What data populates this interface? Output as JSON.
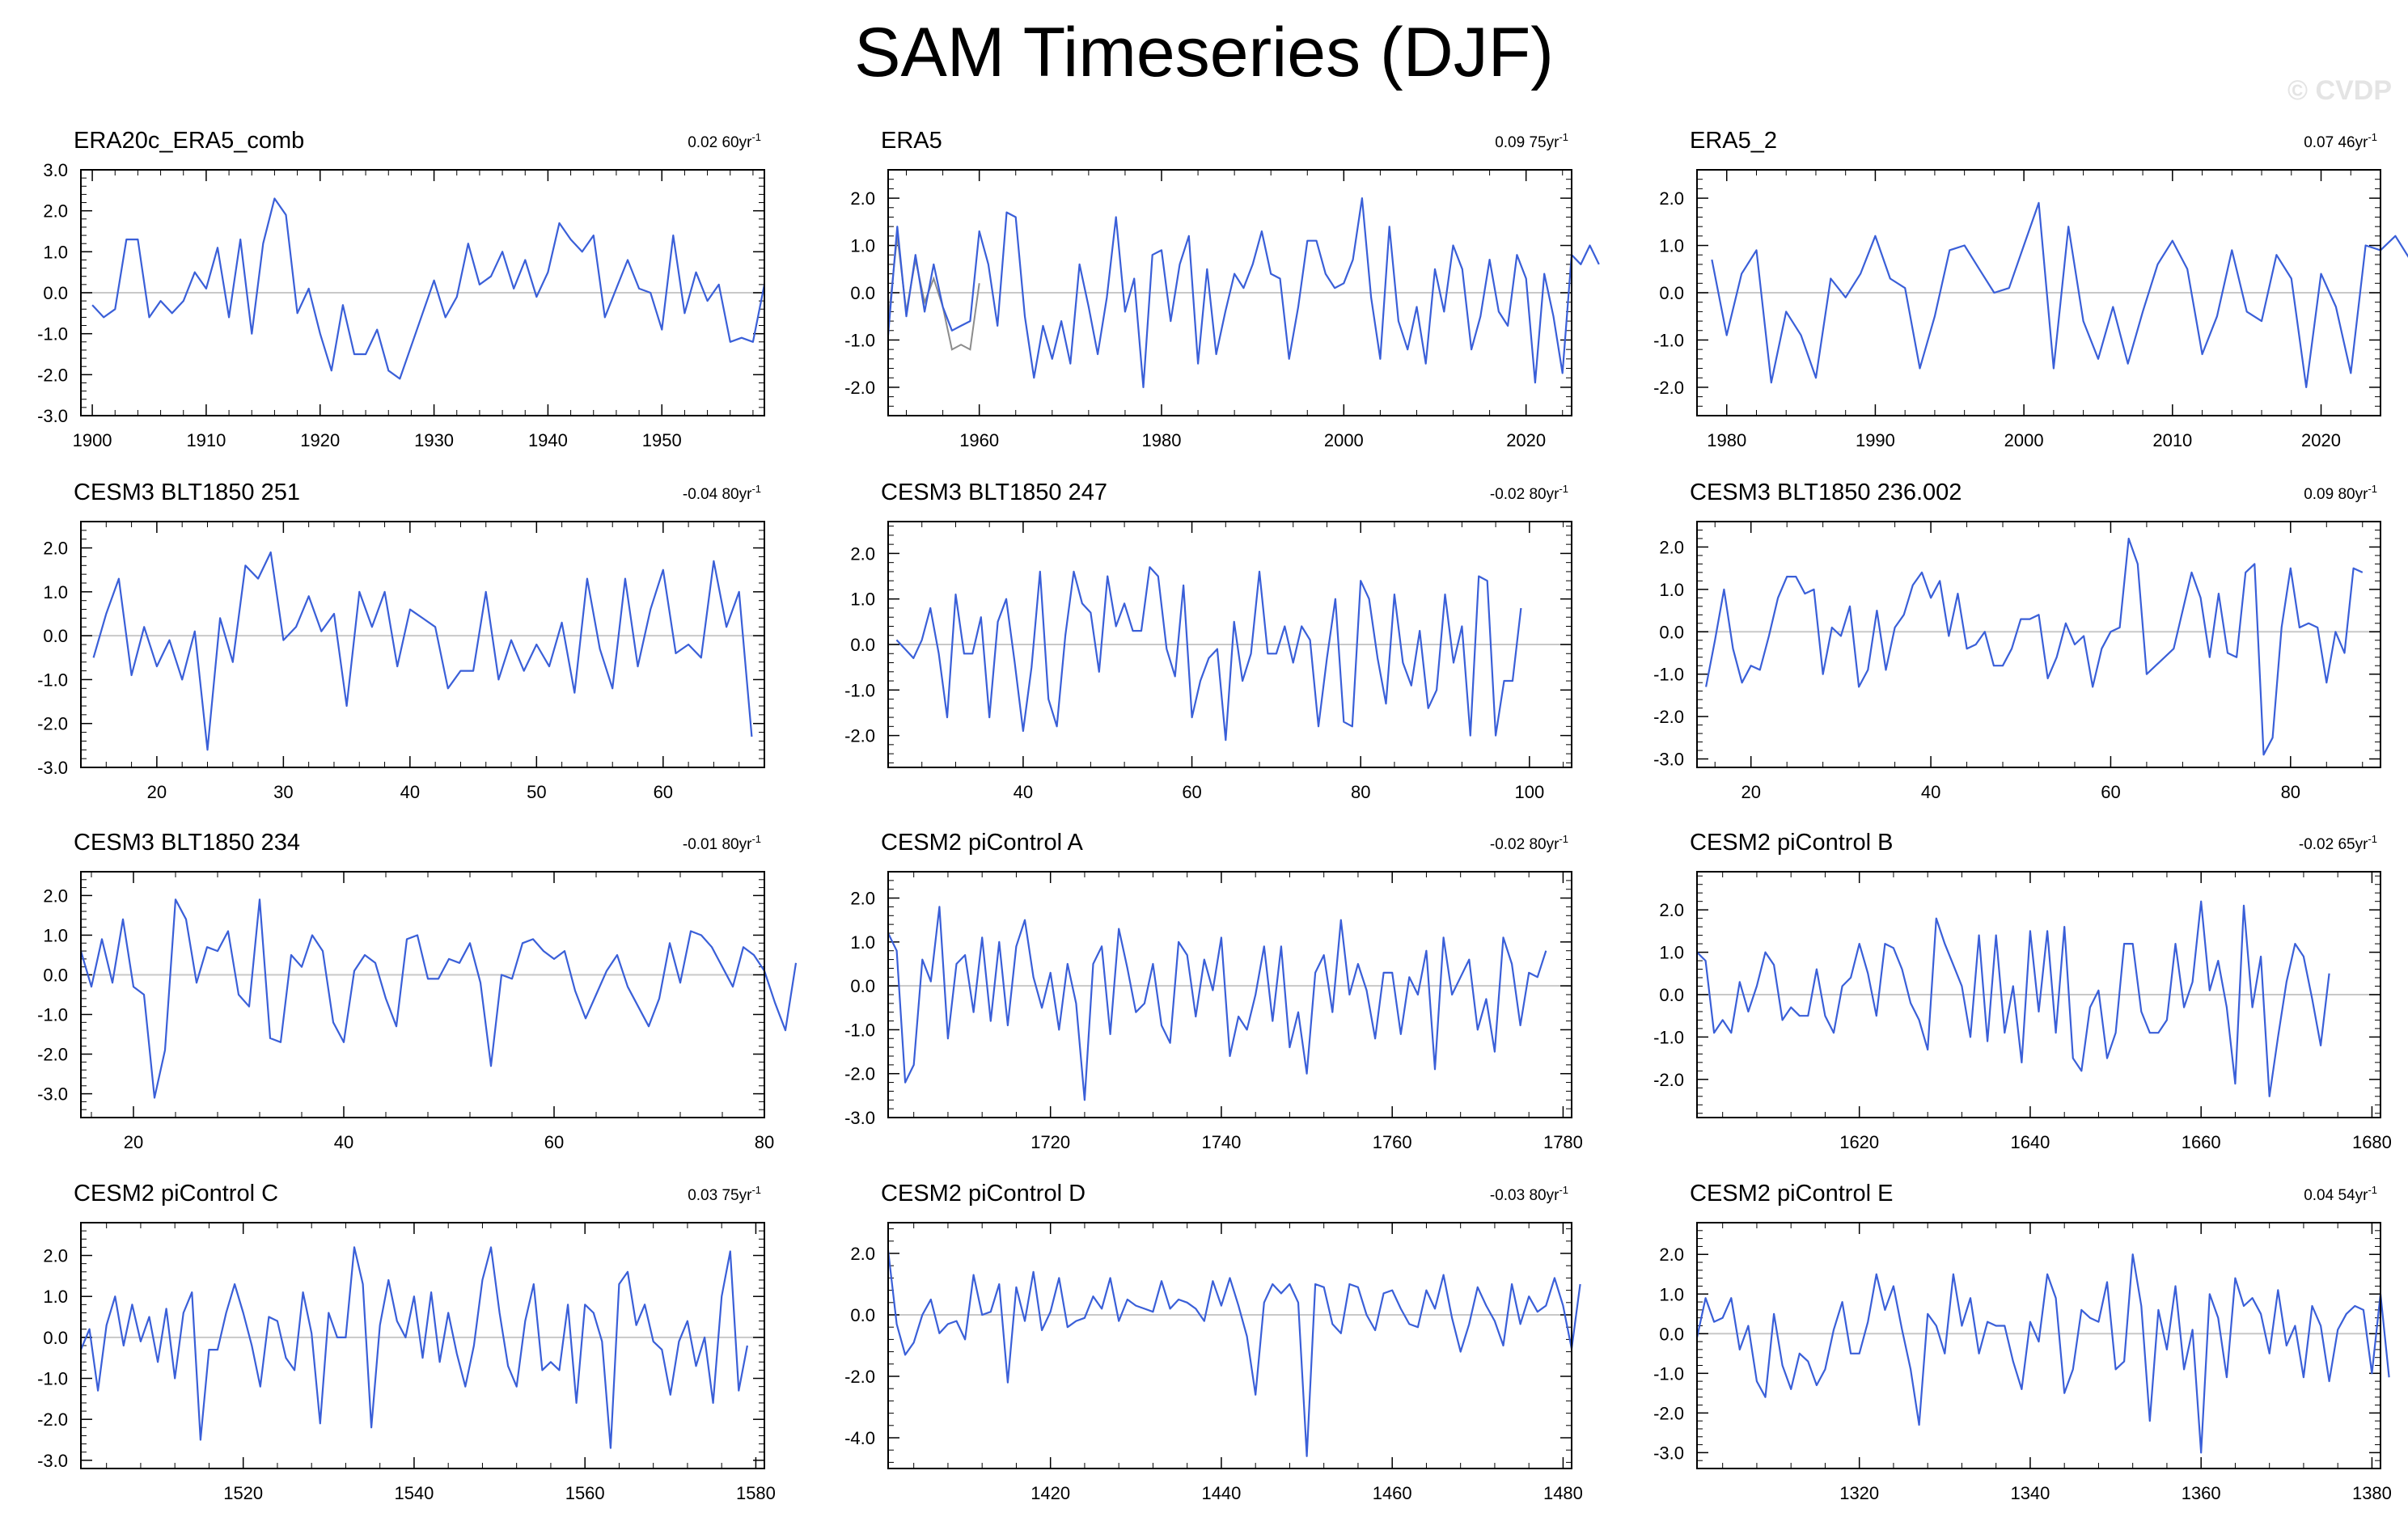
{
  "title": "SAM Timeseries (DJF)",
  "watermark": "© CVDP",
  "colors": {
    "series": "#3a5fd8",
    "overlay": "#8c8c8c",
    "zero_line": "#c8c8c8",
    "frame": "#000000"
  },
  "chart_data": [
    {
      "type": "line",
      "title": "ERA20c_ERA5_comb",
      "trend": "0.02",
      "trend_per": "60yr",
      "trend_unit": "-1",
      "x_start": 1900,
      "xlim": [
        1899,
        1959
      ],
      "ylim": [
        -3.0,
        3.0
      ],
      "yticks": [
        -3.0,
        -2.0,
        -1.0,
        0.0,
        1.0,
        2.0,
        3.0
      ],
      "xticks": [
        1900,
        1910,
        1920,
        1930,
        1940,
        1950
      ],
      "values": [
        -0.3,
        -0.6,
        -0.4,
        1.3,
        1.3,
        -0.6,
        -0.2,
        -0.5,
        -0.2,
        0.5,
        0.1,
        1.1,
        -0.6,
        1.3,
        -1.0,
        1.2,
        2.3,
        1.9,
        -0.5,
        0.1,
        -1.0,
        -1.9,
        -0.3,
        -1.5,
        -1.5,
        -0.9,
        -1.9,
        -2.1,
        -1.3,
        -0.5,
        0.3,
        -0.6,
        -0.1,
        1.2,
        0.2,
        0.4,
        1.0,
        0.1,
        0.8,
        -0.1,
        0.5,
        1.7,
        1.3,
        1.0,
        1.4,
        -0.6,
        0.1,
        0.8,
        0.1,
        0.0,
        -0.9,
        1.4,
        -0.5,
        0.5,
        -0.2,
        0.2,
        -1.2,
        -1.1,
        -1.2,
        0.2
      ],
      "overlay_values": []
    },
    {
      "type": "line",
      "title": "ERA5",
      "trend": "0.09",
      "trend_per": "75yr",
      "trend_unit": "-1",
      "x_start": 1950,
      "xlim": [
        1950,
        2025
      ],
      "ylim": [
        -2.6,
        2.6
      ],
      "yticks": [
        -2.0,
        -1.0,
        0.0,
        1.0,
        2.0
      ],
      "xticks": [
        1960,
        1980,
        2000,
        2020
      ],
      "values": [
        -0.9,
        1.4,
        -0.5,
        0.8,
        -0.4,
        0.6,
        -0.3,
        -0.8,
        -0.7,
        -0.6,
        1.3,
        0.6,
        -0.7,
        1.7,
        1.6,
        -0.5,
        -1.8,
        -0.7,
        -1.4,
        -0.6,
        -1.5,
        0.6,
        -0.3,
        -1.3,
        -0.1,
        1.6,
        -0.4,
        0.3,
        -2.0,
        0.8,
        0.9,
        -0.6,
        0.6,
        1.2,
        -1.5,
        0.5,
        -1.3,
        -0.4,
        0.4,
        0.1,
        0.6,
        1.3,
        0.4,
        0.3,
        -1.4,
        -0.3,
        1.1,
        1.1,
        0.4,
        0.1,
        0.2,
        0.7,
        2.0,
        -0.1,
        -1.4,
        1.4,
        -0.6,
        -1.2,
        -0.3,
        -1.5,
        0.5,
        -0.4,
        1.0,
        0.5,
        -1.2,
        -0.5,
        0.7,
        -0.4,
        -0.7,
        0.8,
        0.3,
        -1.9,
        0.4,
        -0.5,
        -1.7,
        0.8,
        0.6,
        1.0,
        0.6
      ],
      "overlay_values": [
        -0.6,
        1.2,
        -0.4,
        0.7,
        -0.2,
        0.3,
        -0.3,
        -1.2,
        -1.1,
        -1.2,
        0.2
      ]
    },
    {
      "type": "line",
      "title": "ERA5_2",
      "trend": "0.07",
      "trend_per": "46yr",
      "trend_unit": "-1",
      "x_start": 1979,
      "xlim": [
        1978,
        2024
      ],
      "ylim": [
        -2.6,
        2.6
      ],
      "yticks": [
        -2.0,
        -1.0,
        0.0,
        1.0,
        2.0
      ],
      "xticks": [
        1980,
        1990,
        2000,
        2010,
        2020
      ],
      "values": [
        0.7,
        -0.9,
        0.4,
        0.9,
        -1.9,
        -0.4,
        -0.9,
        -1.8,
        0.3,
        -0.1,
        0.4,
        1.2,
        0.3,
        0.1,
        -1.6,
        -0.5,
        0.9,
        1.0,
        0.5,
        0.0,
        0.1,
        1.0,
        1.9,
        -1.6,
        1.4,
        -0.6,
        -1.4,
        -0.3,
        -1.5,
        -0.4,
        0.6,
        1.1,
        0.5,
        -1.3,
        -0.5,
        0.9,
        -0.4,
        -0.6,
        0.8,
        0.3,
        -2.0,
        0.4,
        -0.3,
        -1.7,
        1.0,
        0.9,
        1.2,
        0.7
      ],
      "overlay_values": []
    },
    {
      "type": "line",
      "title": "CESM3 BLT1850 251",
      "trend": "-0.04",
      "trend_per": "80yr",
      "trend_unit": "-1",
      "x_start": 15,
      "xlim": [
        14,
        68
      ],
      "ylim": [
        -3.0,
        2.6
      ],
      "yticks": [
        -3.0,
        -2.0,
        -1.0,
        0.0,
        1.0,
        2.0
      ],
      "xticks": [
        20,
        30,
        40,
        50,
        60
      ],
      "values": [
        -0.5,
        0.5,
        1.3,
        -0.9,
        0.2,
        -0.7,
        -0.1,
        -1.0,
        0.1,
        -2.6,
        0.4,
        -0.6,
        1.6,
        1.3,
        1.9,
        -0.1,
        0.2,
        0.9,
        0.1,
        0.5,
        -1.6,
        1.0,
        0.2,
        1.0,
        -0.7,
        0.6,
        0.4,
        0.2,
        -1.2,
        -0.8,
        -0.8,
        1.0,
        -1.0,
        -0.1,
        -0.8,
        -0.2,
        -0.7,
        0.3,
        -1.3,
        1.3,
        -0.3,
        -1.2,
        1.3,
        -0.7,
        0.6,
        1.5,
        -0.4,
        -0.2,
        -0.5,
        1.7,
        0.2,
        1.0,
        -2.3
      ],
      "overlay_values": []
    },
    {
      "type": "line",
      "title": "CESM3 BLT1850 247",
      "trend": "-0.02",
      "trend_per": "80yr",
      "trend_unit": "-1",
      "x_start": 25,
      "xlim": [
        24,
        105
      ],
      "ylim": [
        -2.7,
        2.7
      ],
      "yticks": [
        -2.0,
        -1.0,
        0.0,
        1.0,
        2.0
      ],
      "xticks": [
        40,
        60,
        80,
        100
      ],
      "values": [
        0.1,
        -0.1,
        -0.3,
        0.1,
        0.8,
        -0.2,
        -1.6,
        1.1,
        -0.2,
        -0.2,
        0.6,
        -1.6,
        0.5,
        1.0,
        -0.4,
        -1.9,
        -0.5,
        1.6,
        -1.2,
        -1.8,
        0.2,
        1.6,
        0.9,
        0.7,
        -0.6,
        1.5,
        0.4,
        0.9,
        0.3,
        0.3,
        1.7,
        1.5,
        -0.1,
        -0.7,
        1.3,
        -1.6,
        -0.8,
        -0.3,
        -0.1,
        -2.1,
        0.5,
        -0.8,
        -0.2,
        1.6,
        -0.2,
        -0.2,
        0.4,
        -0.4,
        0.4,
        0.1,
        -1.8,
        -0.3,
        1.0,
        -1.7,
        -1.8,
        1.4,
        1.0,
        -0.3,
        -1.3,
        1.1,
        -0.4,
        -0.9,
        0.3,
        -1.4,
        -1.0,
        1.1,
        -0.4,
        0.4,
        -2.0,
        1.5,
        1.4,
        -2.0,
        -0.8,
        -0.8,
        0.8
      ],
      "overlay_values": []
    },
    {
      "type": "line",
      "title": "CESM3 BLT1850 236.002",
      "trend": "0.09",
      "trend_per": "80yr",
      "trend_unit": "-1",
      "x_start": 15,
      "xlim": [
        14,
        90
      ],
      "ylim": [
        -3.2,
        2.6
      ],
      "yticks": [
        -3.0,
        -2.0,
        -1.0,
        0.0,
        1.0,
        2.0
      ],
      "xticks": [
        20,
        40,
        60,
        80
      ],
      "values": [
        -1.3,
        -0.2,
        1.0,
        -0.4,
        -1.2,
        -0.8,
        -0.9,
        -0.1,
        0.8,
        1.3,
        1.3,
        0.9,
        1.0,
        -1.0,
        0.1,
        -0.1,
        0.6,
        -1.3,
        -0.9,
        0.5,
        -0.9,
        0.1,
        0.4,
        1.1,
        1.4,
        0.8,
        1.2,
        -0.1,
        0.9,
        -0.4,
        -0.3,
        0.0,
        -0.8,
        -0.8,
        -0.4,
        0.3,
        0.3,
        0.4,
        -1.1,
        -0.6,
        0.2,
        -0.3,
        -0.1,
        -1.3,
        -0.4,
        0.0,
        0.1,
        2.2,
        1.6,
        -1.0,
        -0.8,
        -0.6,
        -0.4,
        0.5,
        1.4,
        0.8,
        -0.6,
        0.9,
        -0.5,
        -0.6,
        1.4,
        1.6,
        -2.9,
        -2.5,
        0.1,
        1.5,
        0.1,
        0.2,
        0.1,
        -1.2,
        0.0,
        -0.5,
        1.5,
        1.4
      ],
      "overlay_values": []
    },
    {
      "type": "line",
      "title": "CESM3 BLT1850 234",
      "trend": "-0.01",
      "trend_per": "80yr",
      "trend_unit": "-1",
      "x_start": 15,
      "xlim": [
        15,
        80
      ],
      "ylim": [
        -3.6,
        2.6
      ],
      "yticks": [
        -3.0,
        -2.0,
        -1.0,
        0.0,
        1.0,
        2.0
      ],
      "xticks": [
        20,
        40,
        60,
        80
      ],
      "values": [
        0.6,
        -0.3,
        0.9,
        -0.2,
        1.4,
        -0.3,
        -0.5,
        -3.1,
        -1.9,
        1.9,
        1.4,
        -0.2,
        0.7,
        0.6,
        1.1,
        -0.5,
        -0.8,
        1.9,
        -1.6,
        -1.7,
        0.5,
        0.2,
        1.0,
        0.6,
        -1.2,
        -1.7,
        0.1,
        0.5,
        0.3,
        -0.6,
        -1.3,
        0.9,
        1.0,
        -0.1,
        -0.1,
        0.4,
        0.3,
        0.8,
        -0.2,
        -2.3,
        0.0,
        -0.1,
        0.8,
        0.9,
        0.6,
        0.4,
        0.6,
        -0.4,
        -1.1,
        -0.5,
        0.1,
        0.5,
        -0.3,
        -0.8,
        -1.3,
        -0.6,
        0.8,
        -0.2,
        1.1,
        1.0,
        0.7,
        0.2,
        -0.3,
        0.7,
        0.5,
        0.1,
        -0.7,
        -1.4,
        0.3
      ],
      "overlay_values": []
    },
    {
      "type": "line",
      "title": "CESM2 piControl A",
      "trend": "-0.02",
      "trend_per": "80yr",
      "trend_unit": "-1",
      "x_start": 1701,
      "xlim": [
        1701,
        1781
      ],
      "ylim": [
        -3.0,
        2.6
      ],
      "yticks": [
        -3.0,
        -2.0,
        -1.0,
        0.0,
        1.0,
        2.0
      ],
      "xticks": [
        1720,
        1740,
        1760,
        1780
      ],
      "values": [
        1.2,
        0.8,
        -2.2,
        -1.8,
        0.6,
        0.1,
        1.8,
        -1.2,
        0.5,
        0.7,
        -0.6,
        1.1,
        -0.8,
        1.0,
        -0.9,
        0.9,
        1.5,
        0.2,
        -0.5,
        0.3,
        -1.0,
        0.5,
        -0.4,
        -2.6,
        0.5,
        0.9,
        -1.1,
        1.3,
        0.4,
        -0.6,
        -0.4,
        0.5,
        -0.9,
        -1.3,
        1.0,
        0.7,
        -0.7,
        0.6,
        -0.1,
        1.1,
        -1.6,
        -0.7,
        -1.0,
        -0.2,
        0.9,
        -0.8,
        0.9,
        -1.4,
        -0.6,
        -2.0,
        0.3,
        0.7,
        -0.6,
        1.5,
        -0.2,
        0.5,
        -0.1,
        -1.2,
        0.3,
        0.3,
        -1.1,
        0.2,
        -0.2,
        0.8,
        -1.9,
        1.1,
        -0.2,
        0.2,
        0.6,
        -1.0,
        -0.3,
        -1.5,
        1.1,
        0.5,
        -0.9,
        0.3,
        0.2,
        0.8
      ],
      "overlay_values": []
    },
    {
      "type": "line",
      "title": "CESM2 piControl B",
      "trend": "-0.02",
      "trend_per": "65yr",
      "trend_unit": "-1",
      "x_start": 1601,
      "xlim": [
        1601,
        1681
      ],
      "ylim": [
        -2.9,
        2.9
      ],
      "yticks": [
        -2.0,
        -1.0,
        0.0,
        1.0,
        2.0
      ],
      "xticks": [
        1620,
        1640,
        1660,
        1680
      ],
      "values": [
        1.0,
        0.8,
        -0.9,
        -0.6,
        -0.9,
        0.3,
        -0.4,
        0.2,
        1.0,
        0.7,
        -0.6,
        -0.3,
        -0.5,
        -0.5,
        0.6,
        -0.5,
        -0.9,
        0.2,
        0.4,
        1.2,
        0.5,
        -0.5,
        1.2,
        1.1,
        0.6,
        -0.2,
        -0.6,
        -1.3,
        1.8,
        1.2,
        0.7,
        0.2,
        -1.0,
        1.4,
        -1.1,
        1.4,
        -0.9,
        0.2,
        -1.6,
        1.5,
        -0.4,
        1.5,
        -0.9,
        1.6,
        -1.5,
        -1.8,
        -0.3,
        0.1,
        -1.5,
        -0.9,
        1.2,
        1.2,
        -0.4,
        -0.9,
        -0.9,
        -0.6,
        1.2,
        -0.3,
        0.3,
        2.2,
        0.1,
        0.8,
        -0.3,
        -2.1,
        2.1,
        -0.3,
        0.9,
        -2.4,
        -1.0,
        0.3,
        1.2,
        0.9,
        -0.1,
        -1.2,
        0.5
      ],
      "overlay_values": []
    },
    {
      "type": "line",
      "title": "CESM2 piControl C",
      "trend": "0.03",
      "trend_per": "75yr",
      "trend_unit": "-1",
      "x_start": 1501,
      "xlim": [
        1501,
        1581
      ],
      "ylim": [
        -3.2,
        2.8
      ],
      "yticks": [
        -3.0,
        -2.0,
        -1.0,
        0.0,
        1.0,
        2.0
      ],
      "xticks": [
        1520,
        1540,
        1560,
        1580
      ],
      "values": [
        -0.3,
        0.2,
        -1.3,
        0.3,
        1.0,
        -0.2,
        0.8,
        -0.1,
        0.5,
        -0.6,
        0.7,
        -1.0,
        0.6,
        1.1,
        -2.5,
        -0.3,
        -0.3,
        0.6,
        1.3,
        0.6,
        -0.2,
        -1.2,
        0.5,
        0.4,
        -0.5,
        -0.8,
        1.1,
        0.1,
        -2.1,
        0.6,
        0.0,
        0.0,
        2.2,
        1.3,
        -2.2,
        0.3,
        1.4,
        0.4,
        0.0,
        1.0,
        -0.5,
        1.1,
        -0.6,
        0.6,
        -0.4,
        -1.2,
        -0.2,
        1.4,
        2.2,
        0.6,
        -0.7,
        -1.2,
        0.4,
        1.3,
        -0.8,
        -0.6,
        -0.8,
        0.8,
        -1.6,
        0.8,
        0.6,
        -0.1,
        -2.7,
        1.3,
        1.6,
        0.3,
        0.8,
        -0.1,
        -0.3,
        -1.4,
        -0.1,
        0.4,
        -0.7,
        0.0,
        -1.6,
        1.0,
        2.1,
        -1.3,
        -0.2
      ],
      "overlay_values": []
    },
    {
      "type": "line",
      "title": "CESM2 piControl D",
      "trend": "-0.03",
      "trend_per": "80yr",
      "trend_unit": "-1",
      "x_start": 1401,
      "xlim": [
        1401,
        1481
      ],
      "ylim": [
        -5.0,
        3.0
      ],
      "yticks": [
        -4.0,
        -2.0,
        0.0,
        2.0
      ],
      "xticks": [
        1420,
        1440,
        1460,
        1480
      ],
      "values": [
        2.1,
        -0.3,
        -1.3,
        -0.9,
        0.0,
        0.5,
        -0.6,
        -0.3,
        -0.2,
        -0.8,
        1.3,
        0.0,
        0.1,
        1.0,
        -2.2,
        0.9,
        -0.2,
        1.4,
        -0.5,
        0.1,
        1.2,
        -0.4,
        -0.2,
        -0.1,
        0.6,
        0.2,
        1.2,
        -0.2,
        0.5,
        0.3,
        0.2,
        0.1,
        1.1,
        0.2,
        0.5,
        0.4,
        0.2,
        -0.2,
        1.1,
        0.3,
        1.2,
        0.3,
        -0.7,
        -2.6,
        0.4,
        1.0,
        0.7,
        1.0,
        0.4,
        -4.6,
        1.0,
        0.9,
        -0.3,
        -0.6,
        1.0,
        0.9,
        0.0,
        -0.5,
        0.7,
        0.8,
        0.2,
        -0.3,
        -0.4,
        0.8,
        0.2,
        1.3,
        -0.1,
        -1.2,
        -0.3,
        0.9,
        0.3,
        -0.2,
        -1.0,
        1.0,
        -0.3,
        0.6,
        0.1,
        0.3,
        1.2,
        0.3,
        -1.1,
        1.0
      ],
      "overlay_values": []
    },
    {
      "type": "line",
      "title": "CESM2 piControl E",
      "trend": "0.04",
      "trend_per": "54yr",
      "trend_unit": "-1",
      "x_start": 1301,
      "xlim": [
        1301,
        1381
      ],
      "ylim": [
        -3.4,
        2.8
      ],
      "yticks": [
        -3.0,
        -2.0,
        -1.0,
        0.0,
        1.0,
        2.0
      ],
      "xticks": [
        1320,
        1340,
        1360,
        1380
      ],
      "values": [
        -0.1,
        0.9,
        0.3,
        0.4,
        0.9,
        -0.4,
        0.2,
        -1.2,
        -1.6,
        0.5,
        -0.8,
        -1.4,
        -0.5,
        -0.7,
        -1.3,
        -0.9,
        0.1,
        0.8,
        -0.5,
        -0.5,
        0.3,
        1.5,
        0.6,
        1.2,
        0.1,
        -0.9,
        -2.3,
        0.5,
        0.2,
        -0.5,
        1.5,
        0.2,
        0.9,
        -0.5,
        0.3,
        0.2,
        0.2,
        -0.7,
        -1.4,
        0.3,
        -0.2,
        1.5,
        0.9,
        -1.5,
        -0.9,
        0.6,
        0.4,
        0.3,
        1.3,
        -0.9,
        -0.7,
        2.0,
        0.7,
        -2.2,
        0.6,
        -0.4,
        1.2,
        -0.9,
        0.1,
        -3.0,
        1.0,
        0.4,
        -1.1,
        1.4,
        0.7,
        0.9,
        0.5,
        -0.5,
        1.1,
        -0.3,
        0.2,
        -1.1,
        0.7,
        0.2,
        -1.2,
        0.1,
        0.5,
        0.7,
        0.6,
        -1.0,
        1.0,
        -1.1
      ],
      "overlay_values": []
    }
  ]
}
